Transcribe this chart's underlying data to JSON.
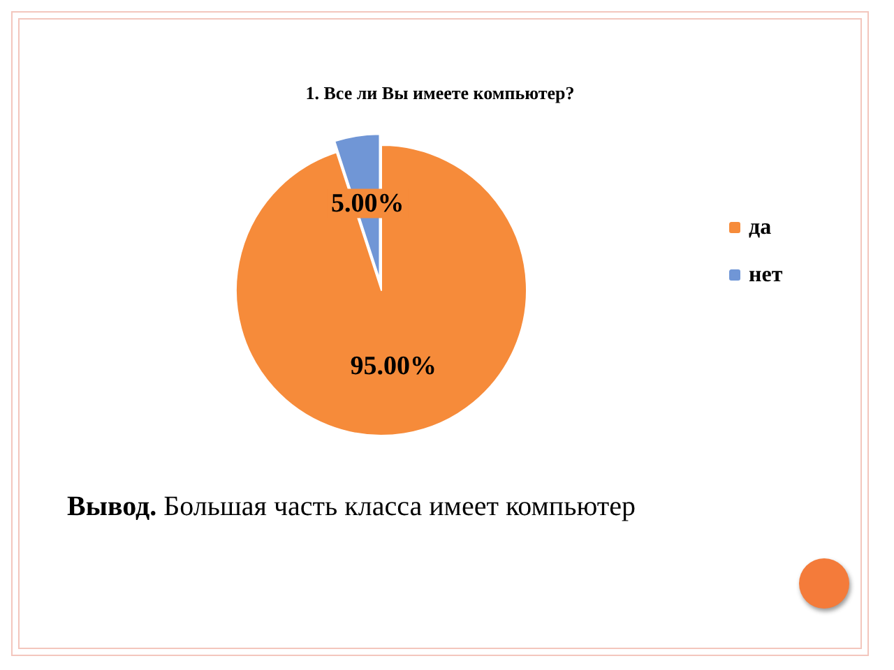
{
  "chart_data": {
    "type": "pie",
    "title": "1. Все ли Вы имеете компьютер?",
    "categories": [
      "да",
      "нет"
    ],
    "values": [
      95,
      5
    ],
    "colors": [
      "#f68b3a",
      "#7096d6"
    ],
    "value_labels": [
      "95.00%",
      "5.00%"
    ],
    "legend": "right",
    "annotations": [
      "Вывод. Большая часть класса имеет компьютер"
    ]
  }
}
